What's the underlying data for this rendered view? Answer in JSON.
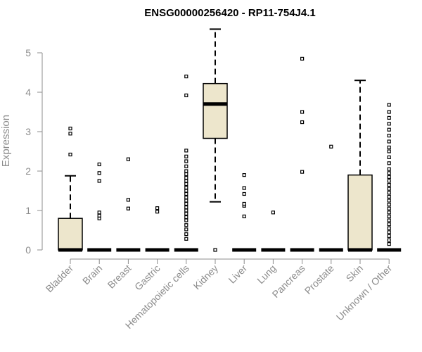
{
  "chart_data": {
    "type": "boxplot",
    "title": "ENSG00000256420 - RP11-754J4.1",
    "xlabel": "",
    "ylabel": "Expression",
    "ylim": [
      0,
      5.5
    ],
    "yticks": [
      0,
      1,
      2,
      3,
      4,
      5
    ],
    "box_fill": "#ede6cc",
    "categories": [
      "Bladder",
      "Brain",
      "Breast",
      "Gastric",
      "Hematopoietic cells",
      "Kidney",
      "Liver",
      "Lung",
      "Pancreas",
      "Prostate",
      "Skin",
      "Unknown / Other"
    ],
    "boxes": [
      {
        "category": "Bladder",
        "min": 0,
        "q1": 0,
        "median": 0,
        "q3": 0.8,
        "max": 1.88,
        "outliers": [
          2.42,
          2.95,
          3.08
        ]
      },
      {
        "category": "Brain",
        "min": 0,
        "q1": 0,
        "median": 0,
        "q3": 0,
        "max": 0,
        "outliers": [
          0.8,
          0.87,
          0.95,
          1.75,
          1.95,
          2.17
        ]
      },
      {
        "category": "Breast",
        "min": 0,
        "q1": 0,
        "median": 0,
        "q3": 0,
        "max": 0,
        "outliers": [
          1.05,
          1.27,
          2.3
        ]
      },
      {
        "category": "Gastric",
        "min": 0,
        "q1": 0,
        "median": 0,
        "q3": 0,
        "max": 0,
        "outliers": [
          0.97,
          1.06
        ]
      },
      {
        "category": "Hematopoietic cells",
        "min": 0,
        "q1": 0,
        "median": 0,
        "q3": 0,
        "max": 0,
        "outliers": [
          0.28,
          0.4,
          0.52,
          0.63,
          0.75,
          0.83,
          0.92,
          1.0,
          1.08,
          1.17,
          1.25,
          1.33,
          1.42,
          1.5,
          1.58,
          1.67,
          1.75,
          1.83,
          1.92,
          2.0,
          2.12,
          2.25,
          2.37,
          2.52,
          3.92,
          4.4
        ]
      },
      {
        "category": "Kidney",
        "min": 1.22,
        "q1": 2.83,
        "median": 3.7,
        "q3": 4.22,
        "max": 5.6,
        "outliers": [
          0
        ]
      },
      {
        "category": "Liver",
        "min": 0,
        "q1": 0,
        "median": 0,
        "q3": 0,
        "max": 0,
        "outliers": [
          0.85,
          1.12,
          1.17,
          1.42,
          1.57,
          1.9
        ]
      },
      {
        "category": "Lung",
        "min": 0,
        "q1": 0,
        "median": 0,
        "q3": 0,
        "max": 0,
        "outliers": [
          0.95
        ]
      },
      {
        "category": "Pancreas",
        "min": 0,
        "q1": 0,
        "median": 0,
        "q3": 0,
        "max": 0,
        "outliers": [
          1.98,
          3.24,
          3.5,
          4.85
        ]
      },
      {
        "category": "Prostate",
        "min": 0,
        "q1": 0,
        "median": 0,
        "q3": 0,
        "max": 0,
        "outliers": [
          2.62
        ]
      },
      {
        "category": "Skin",
        "min": 0,
        "q1": 0,
        "median": 0,
        "q3": 1.9,
        "max": 4.3,
        "outliers": []
      },
      {
        "category": "Unknown / Other",
        "min": 0,
        "q1": 0,
        "median": 0,
        "q3": 0,
        "max": 0,
        "outliers": [
          0.15,
          0.25,
          0.35,
          0.45,
          0.55,
          0.65,
          0.75,
          0.85,
          0.95,
          1.05,
          1.15,
          1.25,
          1.35,
          1.45,
          1.55,
          1.65,
          1.75,
          1.85,
          1.95,
          2.05,
          2.2,
          2.35,
          2.5,
          2.6,
          2.75,
          2.9,
          3.05,
          3.2,
          3.35,
          3.5,
          3.68
        ]
      }
    ]
  }
}
